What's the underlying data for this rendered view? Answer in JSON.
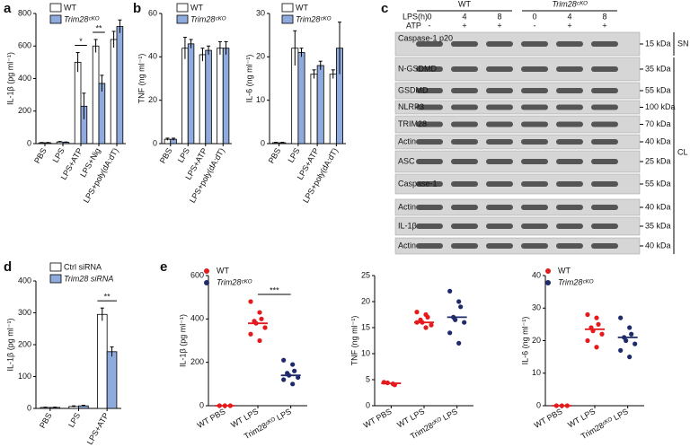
{
  "chart_data": [
    {
      "type": "bar",
      "panel": "a",
      "ylabel": "IL-1β (pg ml⁻¹)",
      "categories": [
        "PBS",
        "LPS",
        "LPS+ATP",
        "LPS+Nig",
        "LPS+poly(dA:dT)"
      ],
      "series": [
        {
          "name": "WT",
          "color": "#ffffff",
          "values": [
            5,
            10,
            500,
            600,
            640
          ],
          "errors": [
            2,
            3,
            60,
            40,
            50
          ]
        },
        {
          "name": "Trim28ᶜᴷᴼ",
          "color": "#8faadc",
          "values": [
            5,
            8,
            230,
            370,
            720
          ],
          "errors": [
            2,
            2,
            80,
            50,
            40
          ]
        }
      ],
      "ylim": [
        0,
        800
      ],
      "yticks": [
        0,
        200,
        400,
        600,
        800
      ],
      "annotations": [
        {
          "text": "*",
          "categories": [
            "LPS+ATP"
          ]
        },
        {
          "text": "**",
          "categories": [
            "LPS+Nig"
          ]
        }
      ]
    },
    {
      "type": "bar",
      "panel": "b",
      "ylabel": "TNF (ng ml⁻¹)",
      "categories": [
        "PBS",
        "LPS",
        "LPS+ATP",
        "LPS+poly(dA:dT)"
      ],
      "series": [
        {
          "name": "WT",
          "color": "#ffffff",
          "values": [
            2,
            44,
            41,
            44
          ],
          "errors": [
            0.5,
            5,
            3,
            3
          ]
        },
        {
          "name": "Trim28ᶜᴷᴼ",
          "color": "#8faadc",
          "values": [
            2,
            46,
            43,
            44
          ],
          "errors": [
            0.5,
            2,
            2,
            3
          ]
        }
      ],
      "ylim": [
        0,
        60
      ],
      "yticks": [
        0,
        20,
        40,
        60
      ]
    },
    {
      "type": "bar",
      "ylabel": "IL-6 (ng ml⁻¹)",
      "categories": [
        "PBS",
        "LPS",
        "LPS+ATP",
        "LPS+poly(dA:dT)"
      ],
      "series": [
        {
          "name": "WT",
          "color": "#ffffff",
          "values": [
            0.2,
            22,
            16,
            16
          ],
          "errors": [
            0.1,
            4,
            1,
            1
          ]
        },
        {
          "name": "Trim28ᶜᴷᴼ",
          "color": "#8faadc",
          "values": [
            0.2,
            21,
            18,
            22
          ],
          "errors": [
            0.1,
            1,
            1,
            6
          ]
        }
      ],
      "ylim": [
        0,
        30
      ],
      "yticks": [
        0,
        10,
        20,
        30
      ]
    },
    {
      "type": "bar",
      "panel": "d",
      "ylabel": "IL-1β (pg ml⁻¹)",
      "categories": [
        "PBS",
        "LPS",
        "LPS+ATP"
      ],
      "series": [
        {
          "name": "Ctrl siRNA",
          "color": "#ffffff",
          "values": [
            3,
            6,
            295
          ],
          "errors": [
            1,
            2,
            20
          ]
        },
        {
          "name": "Trim28 siRNA",
          "color": "#8faadc",
          "values": [
            3,
            8,
            178
          ],
          "errors": [
            1,
            2,
            15
          ]
        }
      ],
      "ylim": [
        0,
        400
      ],
      "yticks": [
        0,
        100,
        200,
        300,
        400
      ],
      "annotations": [
        {
          "text": "**",
          "categories": [
            "LPS+ATP"
          ]
        }
      ]
    },
    {
      "type": "dot",
      "panel": "e",
      "ylabel": "IL-1β (pg ml⁻¹)",
      "categories": [
        "WT PBS",
        "WT LPS",
        "Trim28ᶜᴷᴼ LPS"
      ],
      "series": [
        {
          "name": "WT",
          "color": "#e41a1c",
          "categories": [
            "WT PBS",
            "WT LPS"
          ],
          "points": [
            [
              0,
              0,
              0
            ],
            [
              480,
              430,
              400,
              390,
              380,
              360,
              330,
              300
            ]
          ],
          "means": [
            0,
            380
          ]
        },
        {
          "name": "Trim28ᶜᴷᴼ",
          "color": "#1f2a6b",
          "categories": [
            "Trim28ᶜᴷᴼ LPS"
          ],
          "points": [
            [
              210,
              190,
              160,
              150,
              140,
              130,
              120,
              100
            ]
          ],
          "means": [
            140
          ]
        }
      ],
      "ylim": [
        0,
        600
      ],
      "yticks": [
        0,
        200,
        400,
        600
      ],
      "annotations": [
        {
          "text": "***",
          "categories": [
            "WT LPS",
            "Trim28ᶜᴷᴼ LPS"
          ]
        }
      ]
    },
    {
      "type": "dot",
      "ylabel": "TNF (ng ml⁻¹)",
      "categories": [
        "WT PBS",
        "WT LPS",
        "Trim28ᶜᴷᴼ LPS"
      ],
      "series": [
        {
          "name": "WT",
          "color": "#e41a1c",
          "categories": [
            "WT PBS",
            "WT LPS"
          ],
          "points": [
            [
              4.5,
              4.2,
              4.0,
              4.4
            ],
            [
              18,
              17.5,
              17,
              16.5,
              16,
              15.5,
              16,
              15
            ]
          ],
          "means": [
            4.3,
            16
          ]
        },
        {
          "name": "Trim28ᶜᴷᴼ",
          "color": "#1f2a6b",
          "categories": [
            "Trim28ᶜᴷᴼ LPS"
          ],
          "points": [
            [
              22,
              20,
              19,
              17,
              16.5,
              16,
              14,
              12
            ]
          ],
          "means": [
            17
          ]
        }
      ],
      "ylim": [
        0,
        25
      ],
      "yticks": [
        0,
        5,
        10,
        15,
        20,
        25
      ]
    },
    {
      "type": "dot",
      "ylabel": "IL-6 (ng ml⁻¹)",
      "categories": [
        "WT PBS",
        "WT LPS",
        "Trim28ᶜᴷᴼ LPS"
      ],
      "series": [
        {
          "name": "WT",
          "color": "#e41a1c",
          "categories": [
            "WT PBS",
            "WT LPS"
          ],
          "points": [
            [
              0,
              0,
              0
            ],
            [
              28,
              27,
              25,
              24,
              23,
              22,
              20,
              18
            ]
          ],
          "means": [
            0,
            23.5
          ]
        },
        {
          "name": "Trim28ᶜᴷᴼ",
          "color": "#1f2a6b",
          "categories": [
            "Trim28ᶜᴷᴼ LPS"
          ],
          "points": [
            [
              27,
              24,
              22,
              21,
              20,
              19,
              17,
              15
            ]
          ],
          "means": [
            21
          ]
        }
      ],
      "ylim": [
        0,
        40
      ],
      "yticks": [
        0,
        10,
        20,
        30,
        40
      ]
    }
  ],
  "blot": {
    "panel": "c",
    "lps_label": "LPS(h)",
    "lps": [
      "0",
      "4",
      "8",
      "0",
      "4",
      "8"
    ],
    "atp_label": "ATP",
    "atp": [
      "-",
      "+",
      "+",
      "-",
      "+",
      "+"
    ],
    "groups": [
      "WT",
      "Trim28ᶜᴷᴼ"
    ],
    "rows": [
      {
        "label": "Caspase-1 p20",
        "kda": "15 kDa"
      },
      {
        "label": "N-GSDMD",
        "kda": "35 kDa"
      },
      {
        "label": "GSDMD",
        "kda": "55 kDa"
      },
      {
        "label": "NLRP3",
        "kda": "100 kDa"
      },
      {
        "label": "TRIM28",
        "kda": "70 kDa"
      },
      {
        "label": "Actin",
        "kda": "40 kDa"
      },
      {
        "label": "ASC",
        "kda": "25 kDa"
      },
      {
        "label": "Caspase-1",
        "kda": "55 kDa"
      },
      {
        "label": "Actin",
        "kda": "40 kDa"
      },
      {
        "label": "IL-1β",
        "kda": "35 kDa"
      },
      {
        "label": "Actin",
        "kda": "40 kDa"
      }
    ],
    "fractions": [
      "SN",
      "CL"
    ]
  }
}
